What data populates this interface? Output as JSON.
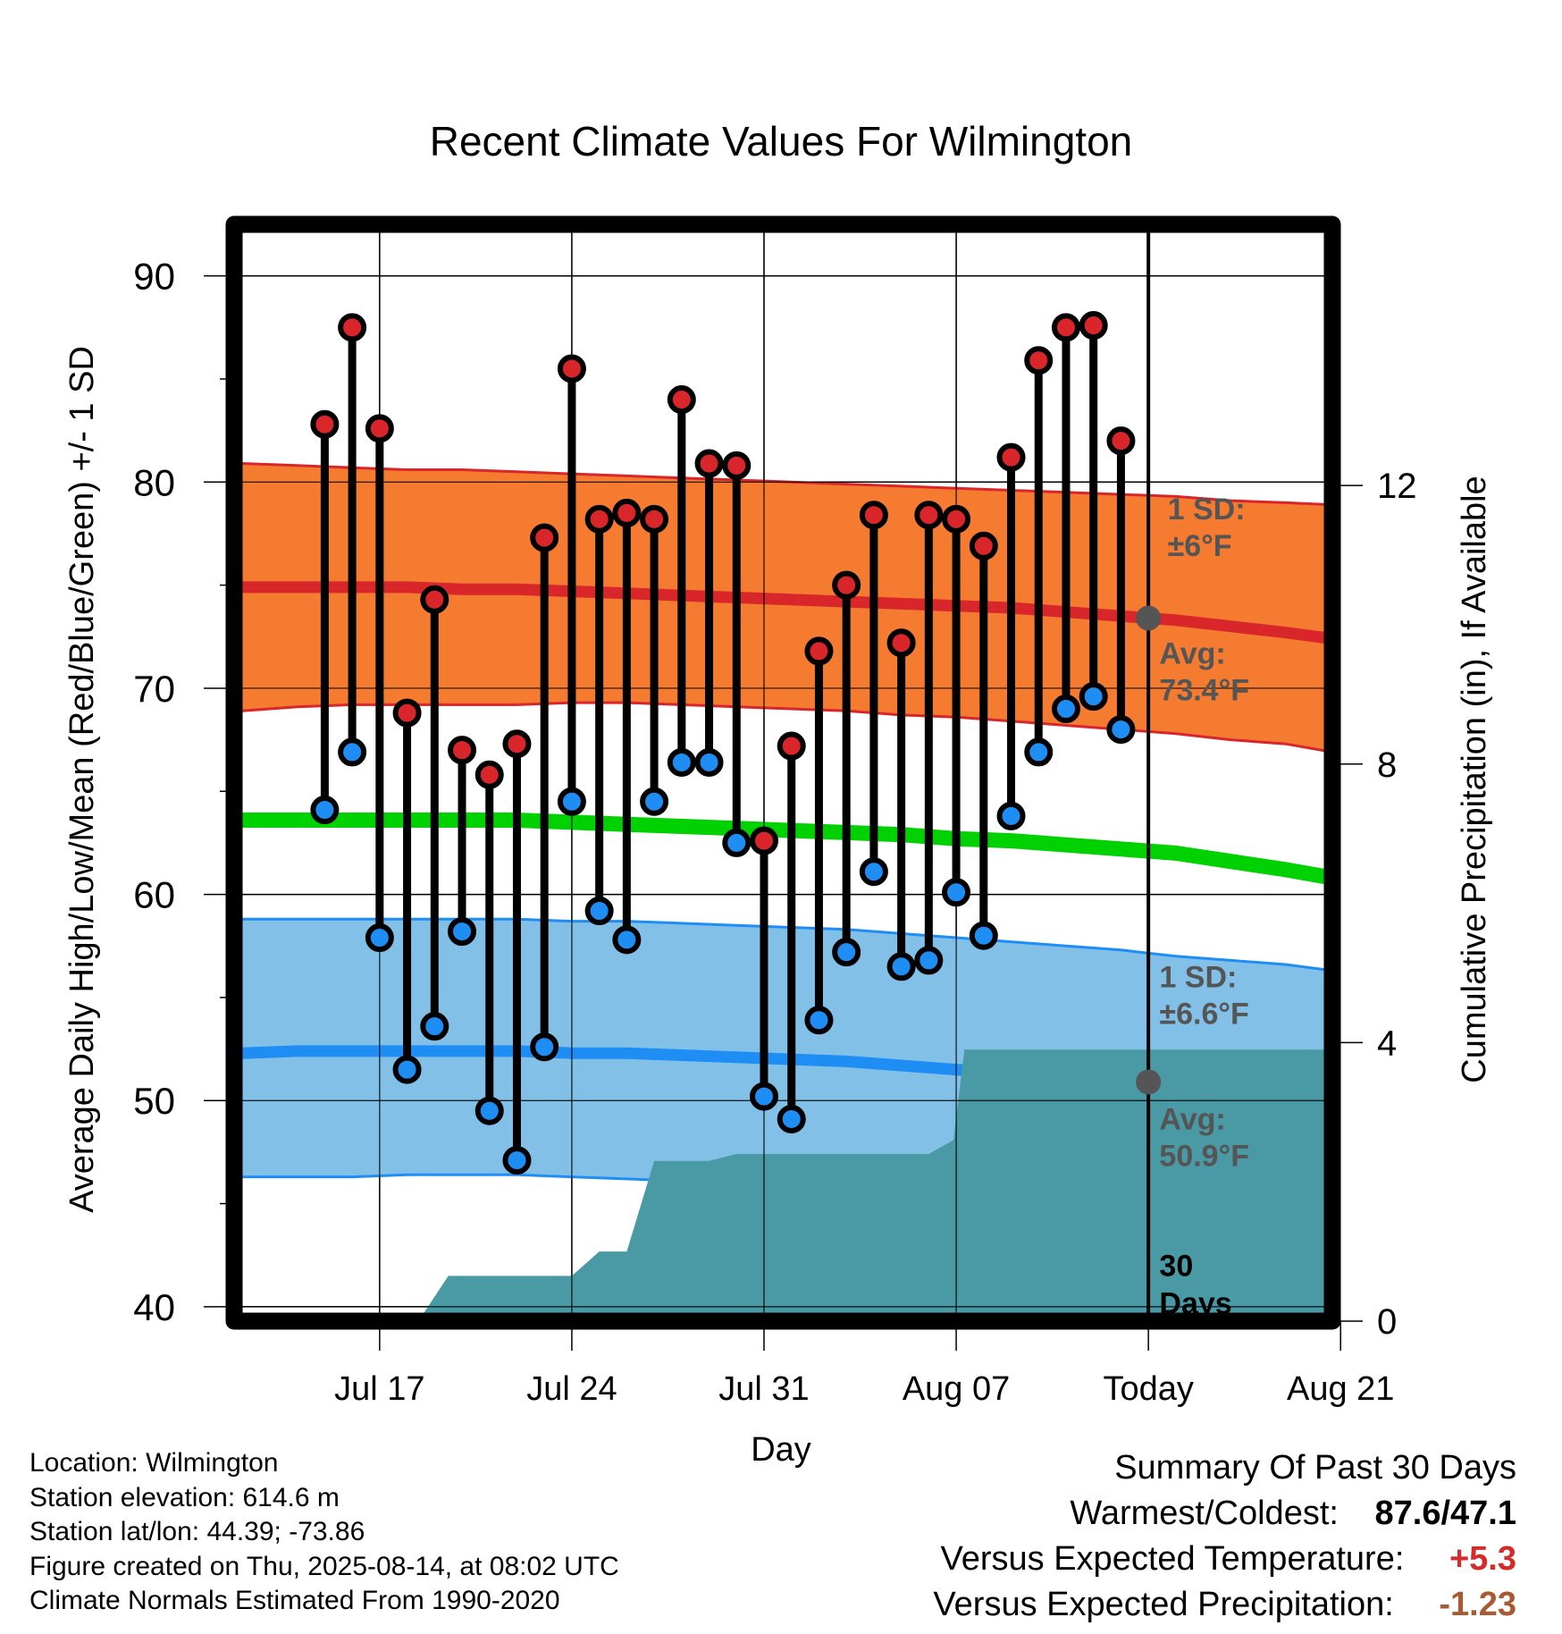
{
  "chart_data": {
    "type": "line",
    "title": "Recent Climate Values For Wilmington",
    "xlabel": "Day",
    "ylabel": "Average Daily High/Low/Mean (Red/Blue/Green) +/- 1 SD",
    "ylabel_right": "Cumulative Precipitation (in), If Available",
    "ylim": [
      39.3,
      92.5
    ],
    "y_ticks": [
      "40",
      "50",
      "60",
      "70",
      "80",
      "90"
    ],
    "y2lim": [
      0,
      15.75
    ],
    "y2_ticks": [
      "0",
      "4",
      "8",
      "12"
    ],
    "x_range_days": [
      -33.3,
      6.7
    ],
    "x_ticks": [
      {
        "label": "Jul 17",
        "day": -28
      },
      {
        "label": "Jul 24",
        "day": -21
      },
      {
        "label": "Jul 31",
        "day": -14
      },
      {
        "label": "Aug 07",
        "day": -7
      },
      {
        "label": "Today",
        "day": 0
      },
      {
        "label": "Aug 21",
        "day": 7
      }
    ],
    "grid": true,
    "today_marker": {
      "label": "30\nDays"
    },
    "daily": {
      "days": [
        -30,
        -29,
        -28,
        -27,
        -26,
        -25,
        -24,
        -23,
        -22,
        -21,
        -20,
        -19,
        -18,
        -17,
        -16,
        -15,
        -14,
        -13,
        -12,
        -11,
        -10,
        -9,
        -8,
        -7,
        -6,
        -5,
        -4,
        -3,
        -2,
        -1
      ],
      "high": [
        82.8,
        87.5,
        82.6,
        68.8,
        74.3,
        67.0,
        65.8,
        67.3,
        77.3,
        85.5,
        78.2,
        78.5,
        78.2,
        84.0,
        80.9,
        80.8,
        62.6,
        67.2,
        71.8,
        75.0,
        78.4,
        72.2,
        78.4,
        78.2,
        76.9,
        81.2,
        85.9,
        87.5,
        87.6,
        82.0
      ],
      "low": [
        64.1,
        66.9,
        57.9,
        51.5,
        53.6,
        58.2,
        49.5,
        47.1,
        52.6,
        64.5,
        59.2,
        57.8,
        64.5,
        66.4,
        66.4,
        62.5,
        50.2,
        49.1,
        53.9,
        57.2,
        61.1,
        56.5,
        56.8,
        60.1,
        58.0,
        63.8,
        66.9,
        69.0,
        69.6,
        68.0
      ]
    },
    "normals": {
      "days": [
        -33,
        -31,
        -29,
        -27,
        -25,
        -23,
        -21,
        -19,
        -17,
        -15,
        -13,
        -11,
        -9,
        -7,
        -5,
        -3,
        -1,
        1,
        3,
        5,
        6.7
      ],
      "high_mean": [
        74.9,
        74.9,
        74.9,
        74.9,
        74.8,
        74.8,
        74.7,
        74.6,
        74.5,
        74.4,
        74.3,
        74.2,
        74.1,
        74.0,
        73.9,
        73.7,
        73.5,
        73.3,
        73.0,
        72.7,
        72.4
      ],
      "high_upper": [
        80.9,
        80.8,
        80.7,
        80.6,
        80.6,
        80.5,
        80.4,
        80.3,
        80.2,
        80.1,
        80.0,
        79.9,
        79.8,
        79.7,
        79.6,
        79.5,
        79.4,
        79.3,
        79.1,
        79.0,
        78.9
      ],
      "high_lower": [
        68.9,
        69.1,
        69.2,
        69.2,
        69.2,
        69.2,
        69.3,
        69.3,
        69.2,
        69.1,
        69.0,
        68.9,
        68.7,
        68.6,
        68.4,
        68.2,
        68.0,
        67.8,
        67.5,
        67.3,
        66.9
      ],
      "mean": [
        63.6,
        63.6,
        63.6,
        63.6,
        63.6,
        63.6,
        63.5,
        63.4,
        63.3,
        63.2,
        63.1,
        63.0,
        62.9,
        62.7,
        62.6,
        62.4,
        62.2,
        62.0,
        61.6,
        61.2,
        60.8
      ],
      "low_mean": [
        52.3,
        52.4,
        52.4,
        52.4,
        52.4,
        52.4,
        52.3,
        52.3,
        52.2,
        52.1,
        52.0,
        51.9,
        51.7,
        51.5,
        51.3,
        51.1,
        50.9,
        50.5,
        50.1,
        49.7,
        49.3
      ],
      "low_upper": [
        58.8,
        58.8,
        58.8,
        58.8,
        58.8,
        58.8,
        58.7,
        58.7,
        58.6,
        58.5,
        58.4,
        58.3,
        58.1,
        57.9,
        57.7,
        57.5,
        57.3,
        57.0,
        56.8,
        56.6,
        56.3
      ],
      "low_lower": [
        46.3,
        46.3,
        46.3,
        46.4,
        46.4,
        46.4,
        46.3,
        46.2,
        46.1,
        46.0,
        45.9,
        45.8,
        45.6,
        45.5,
        45.5,
        45.5,
        45.5,
        45.5,
        45.5,
        45.5,
        45.5
      ]
    },
    "precip_cumulative": {
      "days": [
        -33.3,
        -29,
        -27.5,
        -26.5,
        -25.5,
        -24.5,
        -23,
        -22,
        -21,
        -20,
        -19,
        -18,
        -17,
        -16,
        -15,
        -14,
        -13,
        -11,
        -10,
        -9,
        -8,
        -7.1,
        -6.7,
        -6,
        -5,
        0,
        6.7
      ],
      "values": [
        0,
        0,
        0.05,
        0.05,
        0.65,
        0.65,
        0.65,
        0.65,
        0.65,
        1.0,
        1.0,
        2.3,
        2.3,
        2.3,
        2.4,
        2.4,
        2.4,
        2.4,
        2.4,
        2.4,
        2.4,
        2.6,
        3.9,
        3.9,
        3.9,
        3.9,
        3.9
      ]
    },
    "annotations": {
      "high_sd": {
        "label": "1 SD:",
        "value": "±6°F"
      },
      "high_avg": {
        "label": "Avg:",
        "value": "73.4°F"
      },
      "low_sd": {
        "label": "1 SD:",
        "value": "±6.6°F"
      },
      "low_avg": {
        "label": "Avg:",
        "value": "50.9°F"
      }
    },
    "colors": {
      "high_band": "#f47b2f",
      "high_line": "#d8262a",
      "mean_line": "#00d100",
      "low_band": "#83c0e8",
      "low_line": "#1e8ef5",
      "precip": "#4a9aa5",
      "high_dot": "#d8262a",
      "low_dot": "#1e8ef5",
      "annotation": "#555555"
    }
  },
  "footer": {
    "location": "Location: Wilmington",
    "elevation": "Station elevation: 614.6 m",
    "latlon": "Station lat/lon: 44.39; -73.86",
    "created": "Figure created on Thu, 2025-08-14, at 08:02 UTC",
    "normals": "Climate Normals Estimated From 1990-2020"
  },
  "summary": {
    "title": "Summary Of Past 30 Days",
    "warm_cold_label": "Warmest/Coldest:",
    "warm_cold_value": "87.6/47.1",
    "temp_label": "Versus Expected Temperature:",
    "temp_value": "+5.3",
    "temp_color": "#d42b2b",
    "precip_label": "Versus Expected Precipitation:",
    "precip_value": "-1.23",
    "precip_color": "#a85a34"
  }
}
